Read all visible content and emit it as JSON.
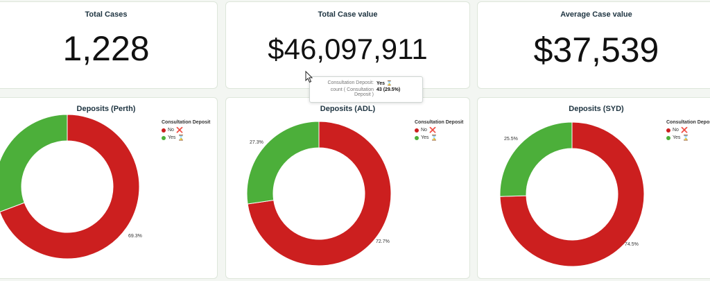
{
  "kpis": {
    "total_cases": {
      "title": "Total Cases",
      "value": "1,228"
    },
    "total_case_value": {
      "title": "Total Case value",
      "value": "$46,097,911"
    },
    "average_case_value": {
      "title": "Average Case value",
      "value": "$37,539"
    }
  },
  "colors": {
    "no": "#cc1f1f",
    "yes": "#4caf3a",
    "card_border": "#dde6da"
  },
  "legend": {
    "title": "Consultation Deposit",
    "items": [
      {
        "label": "No",
        "icon": "cross-mark-icon",
        "emoji": "❌"
      },
      {
        "label": "Yes",
        "icon": "hourglass-icon",
        "emoji": "⌛"
      }
    ]
  },
  "tooltip": {
    "rows": [
      {
        "key": "Consultation Deposit:",
        "value": "Yes ⌛"
      },
      {
        "key": "count ( Consultation Deposit )",
        "value": "43 (29.5%)"
      }
    ]
  },
  "chart_data": [
    {
      "type": "pie",
      "title": "Deposits (Perth)",
      "categories": [
        "No",
        "Yes"
      ],
      "values": [
        69.3,
        30.7
      ],
      "labels": [
        "69.3%",
        "%"
      ]
    },
    {
      "type": "pie",
      "title": "Deposits (ADL)",
      "categories": [
        "No",
        "Yes"
      ],
      "values": [
        72.7,
        27.3
      ],
      "labels": [
        "72.7%",
        "27.3%"
      ]
    },
    {
      "type": "pie",
      "title": "Deposits (SYD)",
      "categories": [
        "No",
        "Yes"
      ],
      "values": [
        74.5,
        25.5
      ],
      "labels": [
        "74.5%",
        "25.5%"
      ]
    }
  ]
}
